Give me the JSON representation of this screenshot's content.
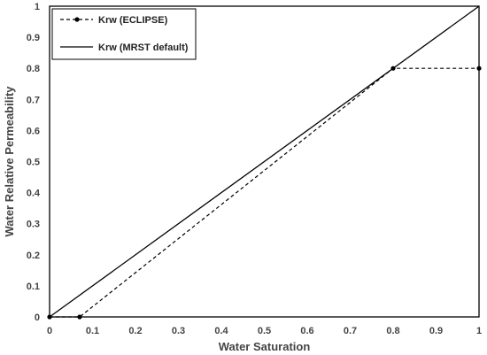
{
  "chart_data": {
    "type": "line",
    "xlabel": "Water Saturation",
    "ylabel": "Water Relative Permeability",
    "xlim": [
      0,
      1
    ],
    "ylim": [
      0,
      1
    ],
    "x_ticks": [
      "0",
      "0.1",
      "0.2",
      "0.3",
      "0.4",
      "0.5",
      "0.6",
      "0.7",
      "0.8",
      "0.9",
      "1"
    ],
    "y_ticks": [
      "0",
      "0.1",
      "0.2",
      "0.3",
      "0.4",
      "0.5",
      "0.6",
      "0.7",
      "0.8",
      "0.9",
      "1"
    ],
    "grid": false,
    "legend_position": "top-left",
    "series": [
      {
        "name": "Krw (ECLIPSE)",
        "style": "dashed-with-markers",
        "color": "#000000",
        "x": [
          0,
          0.07,
          0.8,
          1
        ],
        "y": [
          0,
          0,
          0.8,
          0.8
        ]
      },
      {
        "name": "Krw (MRST default)",
        "style": "solid",
        "color": "#000000",
        "x": [
          0,
          1
        ],
        "y": [
          0,
          1
        ]
      }
    ]
  }
}
